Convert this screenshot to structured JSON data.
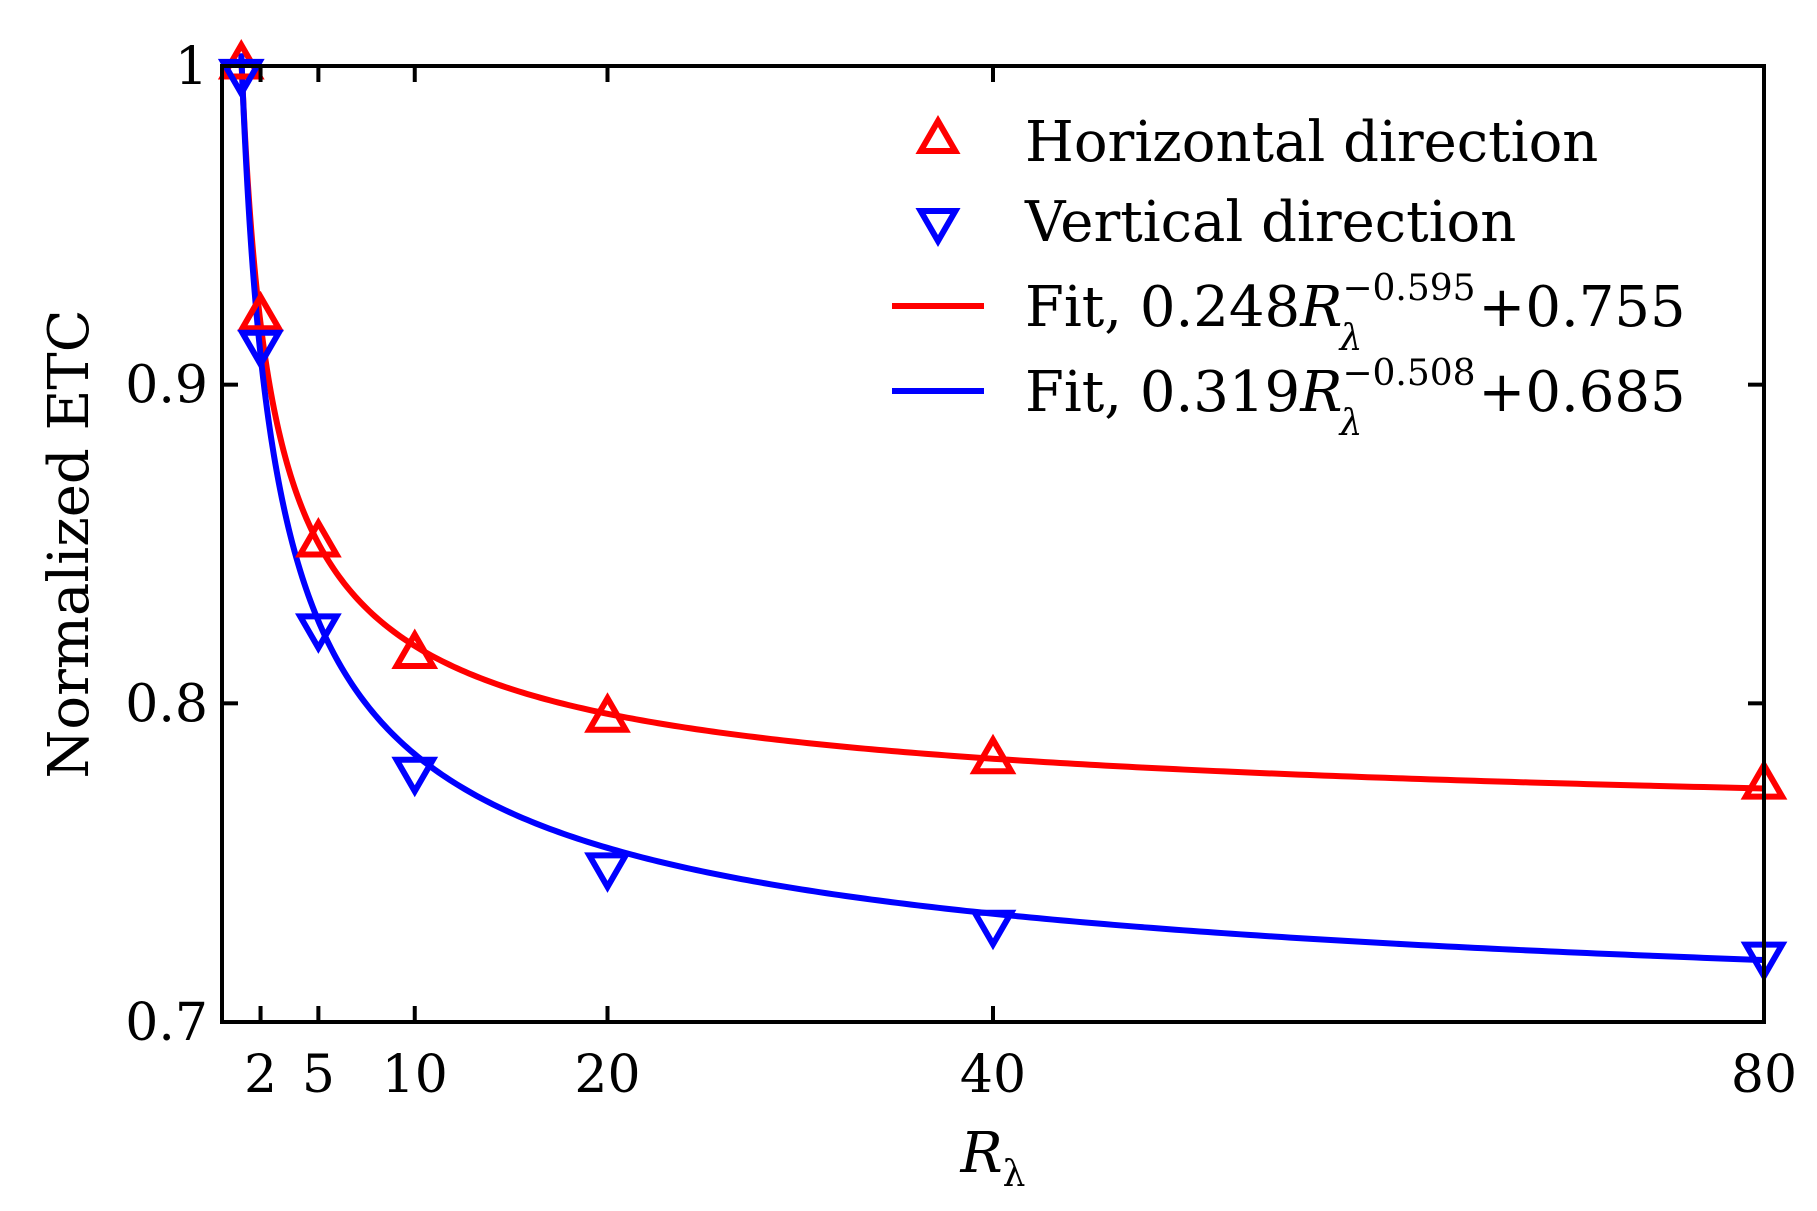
{
  "chart_data": {
    "type": "line",
    "xlabel": "R",
    "xlabel_sub": "λ",
    "ylabel": "Normalized ETC",
    "xlim": [
      0,
      80
    ],
    "ylim": [
      0.7,
      1.0
    ],
    "x_ticks": [
      2,
      5,
      10,
      20,
      40,
      80
    ],
    "x_tick_labels": [
      "2",
      "5",
      "10",
      "20",
      "40",
      "80"
    ],
    "y_ticks": [
      0.7,
      0.8,
      0.9,
      1.0
    ],
    "y_tick_labels": [
      "0.7",
      "0.8",
      "0.9",
      "1"
    ],
    "grid": false,
    "legend_position": "top-right",
    "series": [
      {
        "name": "Horizontal direction",
        "kind": "scatter",
        "marker": "triangle-up",
        "color": "#ff0000",
        "x": [
          1,
          2,
          5,
          10,
          20,
          40,
          80
        ],
        "y": [
          1.0,
          0.921,
          0.85,
          0.815,
          0.795,
          0.782,
          0.774
        ]
      },
      {
        "name": "Vertical direction",
        "kind": "scatter",
        "marker": "triangle-down",
        "color": "#0000ff",
        "x": [
          1,
          2,
          5,
          10,
          20,
          40,
          80
        ],
        "y": [
          0.998,
          0.913,
          0.824,
          0.779,
          0.749,
          0.731,
          0.721
        ]
      },
      {
        "name": "Fit, 0.248R_λ^-0.595+0.755",
        "kind": "fit",
        "color": "#ff0000",
        "label_prefix": "Fit, 0.248",
        "label_var": "R",
        "label_sub": "λ",
        "label_exp": "−0.595",
        "label_suffix": "+0.755",
        "coef": 0.248,
        "exponent": -0.595,
        "offset": 0.755,
        "x_range": [
          1,
          80
        ]
      },
      {
        "name": "Fit, 0.319R_λ^-0.508+0.685",
        "kind": "fit",
        "color": "#0000ff",
        "label_prefix": "Fit, 0.319",
        "label_var": "R",
        "label_sub": "λ",
        "label_exp": "−0.508",
        "label_suffix": "+0.685",
        "coef": 0.319,
        "exponent": -0.508,
        "offset": 0.685,
        "x_range": [
          1,
          80
        ]
      }
    ]
  }
}
